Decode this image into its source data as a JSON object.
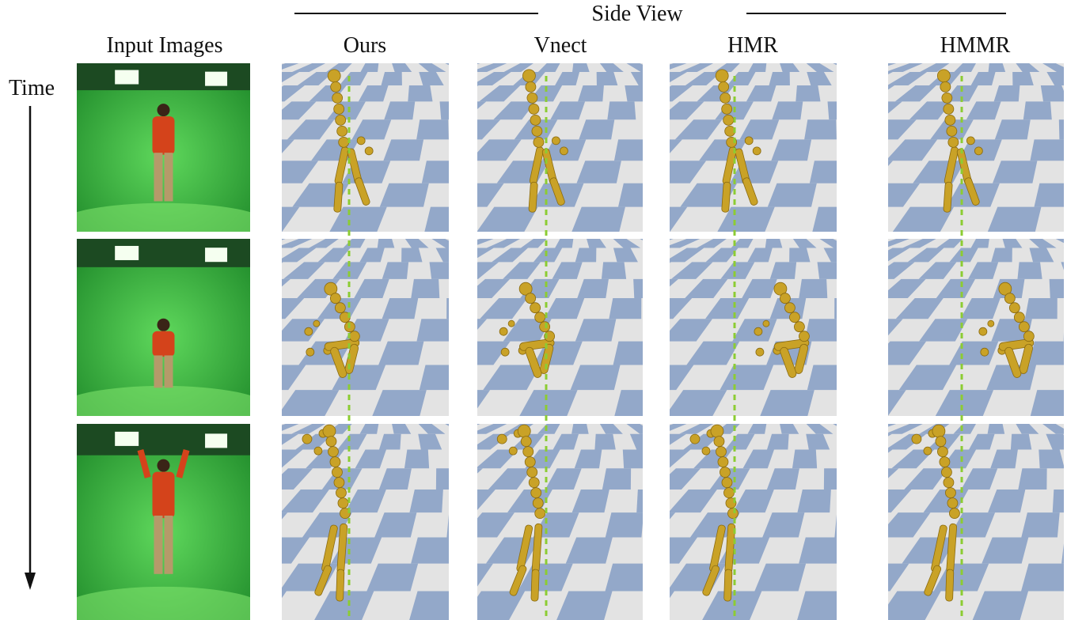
{
  "header": {
    "group_label": "Side View",
    "columns": [
      "Input Images",
      "Ours",
      "Vnect",
      "HMR",
      "HMMR"
    ]
  },
  "axis": {
    "label": "Time"
  },
  "rows": [
    {
      "pose": "standing"
    },
    {
      "pose": "squat"
    },
    {
      "pose": "jump"
    }
  ],
  "colors": {
    "floor_tile": "#93a8c9",
    "floor_light": "#e3e3e3",
    "skeleton": "#c9a227",
    "guide_line": "#8ccc33",
    "green_screen": "#3dbb3d"
  }
}
